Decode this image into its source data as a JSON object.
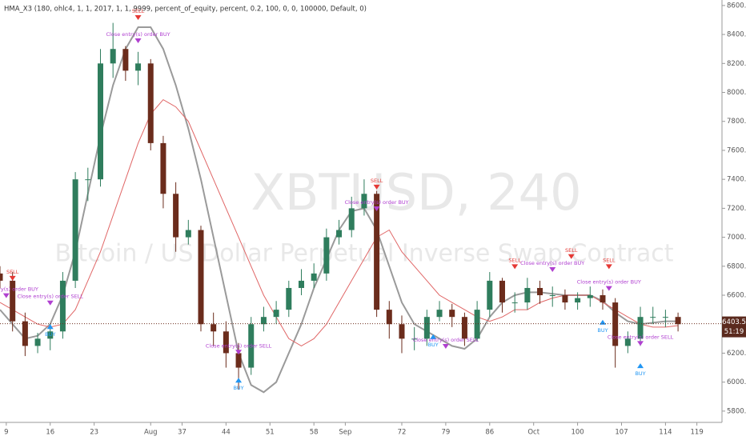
{
  "chart_data": {
    "type": "candlestick",
    "title": "HMA_X3 (180, ohlc4, 1, 1, 2017, 1, 1, 9999, percent_of_equity, percent, 0.2, 100, 0, 0, 100000, Default, 0)",
    "watermark": "XBTUSD, 240",
    "watermark_subtitle": "Bitcoin / US Dollar Perpetual Inverse Swap Contract",
    "x": [
      8,
      10,
      12,
      14,
      16,
      18,
      20,
      22,
      24,
      26,
      28,
      30,
      32,
      34,
      36,
      38,
      40,
      42,
      44,
      46,
      48,
      50,
      52,
      54,
      56,
      58,
      60,
      62,
      64,
      66,
      68,
      70,
      72,
      74,
      76,
      78,
      80,
      82,
      84,
      86,
      88,
      90,
      92,
      94,
      96,
      98,
      100,
      102,
      104,
      106,
      108,
      110,
      112,
      114,
      116
    ],
    "open": [
      6750,
      6700,
      6420,
      6250,
      6300,
      6350,
      6700,
      7400,
      7400,
      8200,
      8300,
      8150,
      8200,
      7650,
      7300,
      7000,
      7050,
      6400,
      6350,
      6200,
      6100,
      6400,
      6450,
      6500,
      6650,
      6700,
      6750,
      7000,
      7050,
      7200,
      7300,
      6500,
      6400,
      6300,
      6300,
      6450,
      6500,
      6450,
      6300,
      6500,
      6700,
      6550,
      6550,
      6650,
      6600,
      6600,
      6550,
      6580,
      6600,
      6550,
      6250,
      6300,
      6450,
      6450,
      6450
    ],
    "high": [
      6800,
      6760,
      6480,
      6340,
      6400,
      6760,
      7450,
      7480,
      8300,
      8480,
      8320,
      8280,
      8230,
      7700,
      7380,
      7120,
      7080,
      6480,
      6420,
      6270,
      6450,
      6520,
      6560,
      6700,
      6780,
      6820,
      7060,
      7120,
      7280,
      7400,
      7320,
      6560,
      6460,
      6380,
      6500,
      6560,
      6540,
      6480,
      6560,
      6760,
      6720,
      6620,
      6720,
      6700,
      6660,
      6640,
      6620,
      6660,
      6640,
      6580,
      6350,
      6520,
      6520,
      6500,
      6480
    ],
    "low": [
      6650,
      6350,
      6180,
      6200,
      6220,
      6300,
      6650,
      7250,
      7350,
      8100,
      8080,
      8050,
      7600,
      7200,
      6900,
      6950,
      6350,
      6250,
      6100,
      5950,
      6050,
      6350,
      6400,
      6450,
      6600,
      6650,
      6700,
      6950,
      7000,
      7150,
      6450,
      6300,
      6200,
      6220,
      6250,
      6420,
      6380,
      6250,
      6280,
      6450,
      6480,
      6480,
      6500,
      6540,
      6520,
      6500,
      6500,
      6520,
      6500,
      6100,
      6200,
      6250,
      6400,
      6380,
      6350
    ],
    "close": [
      6700,
      6420,
      6250,
      6300,
      6350,
      6700,
      7400,
      7400,
      8200,
      8300,
      8150,
      8200,
      7650,
      7300,
      7000,
      7050,
      6400,
      6350,
      6200,
      6100,
      6400,
      6450,
      6500,
      6650,
      6700,
      6750,
      7000,
      7050,
      7200,
      7300,
      6500,
      6400,
      6300,
      6300,
      6450,
      6500,
      6450,
      6300,
      6500,
      6700,
      6550,
      6550,
      6650,
      6600,
      6600,
      6550,
      6580,
      6600,
      6550,
      6250,
      6300,
      6450,
      6450,
      6450,
      6400
    ],
    "up_color": "#2f7d5d",
    "down_color": "#6b2c1c",
    "lines": [
      {
        "color": "#9a9a9a",
        "values": [
          6500,
          6400,
          6300,
          6320,
          6400,
          6600,
          6900,
          7300,
          7700,
          8050,
          8300,
          8450,
          8450,
          8300,
          8050,
          7750,
          7400,
          7000,
          6600,
          6200,
          5980,
          5930,
          6000,
          6200,
          6400,
          6650,
          6850,
          7050,
          7180,
          7200,
          7050,
          6800,
          6550,
          6400,
          6350,
          6300,
          6250,
          6230,
          6300,
          6450,
          6550,
          6600,
          6620,
          6620,
          6610,
          6600,
          6600,
          6600,
          6560,
          6480,
          6420,
          6400,
          6410,
          6420,
          6420
        ]
      },
      {
        "color": "#e06666",
        "values": [
          6550,
          6500,
          6450,
          6400,
          6380,
          6400,
          6500,
          6700,
          6900,
          7150,
          7400,
          7650,
          7850,
          7950,
          7900,
          7800,
          7600,
          7400,
          7200,
          7000,
          6800,
          6600,
          6450,
          6300,
          6250,
          6300,
          6400,
          6550,
          6700,
          6850,
          7000,
          7050,
          6900,
          6800,
          6700,
          6600,
          6550,
          6500,
          6450,
          6420,
          6450,
          6500,
          6500,
          6550,
          6580,
          6600,
          6600,
          6600,
          6550,
          6500,
          6450,
          6400,
          6380,
          6380,
          6390
        ]
      }
    ],
    "signals": [
      {
        "text": "SELL",
        "x": 10,
        "y": 6700,
        "color": "#e53935"
      },
      {
        "text": "Close entry(s) order BUY",
        "x": 9,
        "y": 6580,
        "color": "#b040d0"
      },
      {
        "text": "Close entry(s) order SELL",
        "x": 16,
        "y": 6530,
        "color": "#b040d0"
      },
      {
        "text": "BUY",
        "x": 16,
        "y": 6400,
        "color": "#2196f3"
      },
      {
        "text": "SELL",
        "x": 30,
        "y": 8500,
        "color": "#e53935"
      },
      {
        "text": "Close entry(s) order BUY",
        "x": 30,
        "y": 8340,
        "color": "#b040d0"
      },
      {
        "text": "Close entry(s) order SELL",
        "x": 46,
        "y": 6190,
        "color": "#b040d0"
      },
      {
        "text": "BUY",
        "x": 46,
        "y": 6030,
        "color": "#2196f3"
      },
      {
        "text": "SELL",
        "x": 68,
        "y": 7330,
        "color": "#e53935"
      },
      {
        "text": "Close entry(s) order BUY",
        "x": 68,
        "y": 7180,
        "color": "#b040d0"
      },
      {
        "text": "BUY",
        "x": 77,
        "y": 6330,
        "color": "#2196f3"
      },
      {
        "text": "Close entry(s) order SELL",
        "x": 79,
        "y": 6230,
        "color": "#b040d0"
      },
      {
        "text": "SELL",
        "x": 90,
        "y": 6780,
        "color": "#e53935"
      },
      {
        "text": "SELL",
        "x": 99,
        "y": 6850,
        "color": "#e53935"
      },
      {
        "text": "Close entry(s) order BUY",
        "x": 96,
        "y": 6760,
        "color": "#b040d0"
      },
      {
        "text": "BUY",
        "x": 104,
        "y": 6430,
        "color": "#2196f3"
      },
      {
        "text": "SELL",
        "x": 105,
        "y": 6780,
        "color": "#e53935"
      },
      {
        "text": "Close entry(s) order BUY",
        "x": 105,
        "y": 6630,
        "color": "#b040d0"
      },
      {
        "text": "Close entry(s) order SELL",
        "x": 110,
        "y": 6250,
        "color": "#b040d0"
      },
      {
        "text": "BUY",
        "x": 110,
        "y": 6130,
        "color": "#2196f3"
      }
    ],
    "last_price": 6403.5,
    "countdown": "51:19",
    "xlim": [
      8,
      123
    ],
    "ylim": [
      5722,
      8638
    ],
    "xticks": [
      9,
      16,
      23,
      {
        "value": 32,
        "label": "Aug"
      },
      37,
      44,
      51,
      58,
      {
        "value": 63,
        "label": "Sep"
      },
      72,
      79,
      86,
      {
        "value": 93,
        "label": "Oct"
      },
      100,
      107,
      114,
      119
    ],
    "yticks": [
      {
        "value": 8600,
        "label": "8600.0"
      },
      {
        "value": 8400,
        "label": "8400.0"
      },
      {
        "value": 8200,
        "label": "8200.0"
      },
      {
        "value": 8000,
        "label": "8000.0"
      },
      {
        "value": 7800,
        "label": "7800.0"
      },
      {
        "value": 7600,
        "label": "7600.0"
      },
      {
        "value": 7400,
        "label": "7400.0"
      },
      {
        "value": 7200,
        "label": "7200.0"
      },
      {
        "value": 7000,
        "label": "7000.0"
      },
      {
        "value": 6800,
        "label": "6800.0"
      },
      {
        "value": 6600,
        "label": "6600.0"
      },
      {
        "value": 6200,
        "label": "6200.0"
      },
      {
        "value": 6000,
        "label": "6000.0"
      },
      {
        "value": 5800,
        "label": "5800.0"
      }
    ]
  }
}
